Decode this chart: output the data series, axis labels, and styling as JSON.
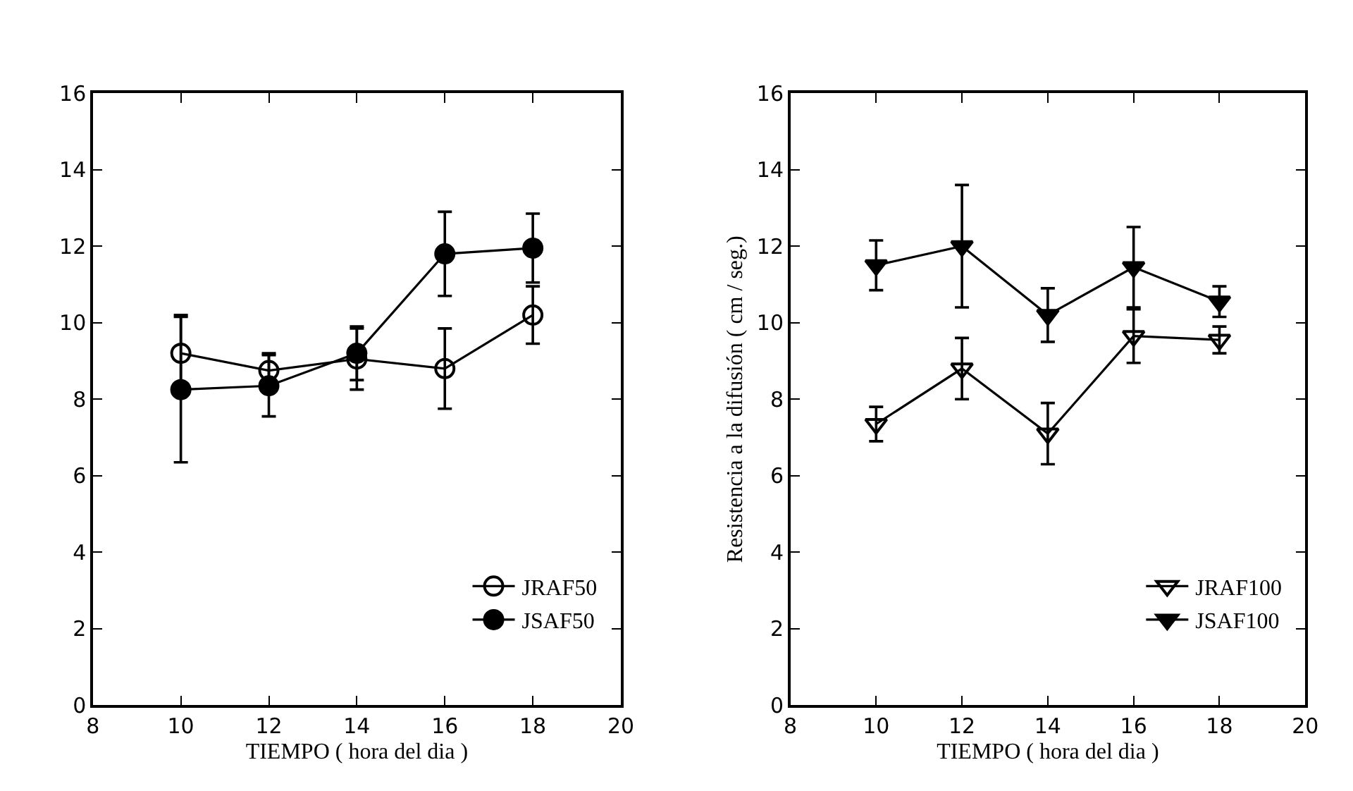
{
  "chart_data": [
    {
      "type": "line",
      "xlabel": "TIEMPO ( hora del dia )",
      "x": [
        10,
        12,
        14,
        16,
        18
      ],
      "xlim": [
        8,
        20
      ],
      "xticks": [
        8,
        10,
        12,
        14,
        16,
        18,
        20
      ],
      "ylim": [
        0,
        16
      ],
      "yticks": [
        0,
        2,
        4,
        6,
        8,
        10,
        12,
        14,
        16
      ],
      "legend": "bottom right",
      "marker": "circle",
      "series": [
        {
          "name": "JRAF50",
          "color": "#000000",
          "values": [
            9.2,
            8.75,
            9.05,
            8.8,
            10.2
          ],
          "errors": [
            1.0,
            0.45,
            0.8,
            1.05,
            0.75
          ]
        },
        {
          "name": "JSAF50",
          "color": "#000000",
          "values": [
            8.25,
            8.35,
            9.2,
            11.8,
            11.95
          ],
          "errors": [
            1.9,
            0.8,
            0.7,
            1.1,
            0.9
          ]
        }
      ]
    },
    {
      "type": "line",
      "xlabel": "TIEMPO ( hora del dia )",
      "ylabel": "Resistencia a la difusión ( cm / seg.)",
      "x": [
        10,
        12,
        14,
        16,
        18
      ],
      "xlim": [
        8,
        20
      ],
      "xticks": [
        8,
        10,
        12,
        14,
        16,
        18,
        20
      ],
      "ylim": [
        0,
        16
      ],
      "yticks": [
        0,
        2,
        4,
        6,
        8,
        10,
        12,
        14,
        16
      ],
      "legend": "bottom right",
      "marker": "triangle",
      "series": [
        {
          "name": "JRAF100",
          "color": "#000000",
          "values": [
            7.35,
            8.8,
            7.1,
            9.65,
            9.55
          ],
          "errors": [
            0.45,
            0.8,
            0.8,
            0.7,
            0.35
          ]
        },
        {
          "name": "JSAF100",
          "color": "#000000",
          "values": [
            11.5,
            12.0,
            10.2,
            11.45,
            10.55
          ],
          "errors": [
            0.65,
            1.6,
            0.7,
            1.05,
            0.4
          ]
        }
      ]
    }
  ]
}
